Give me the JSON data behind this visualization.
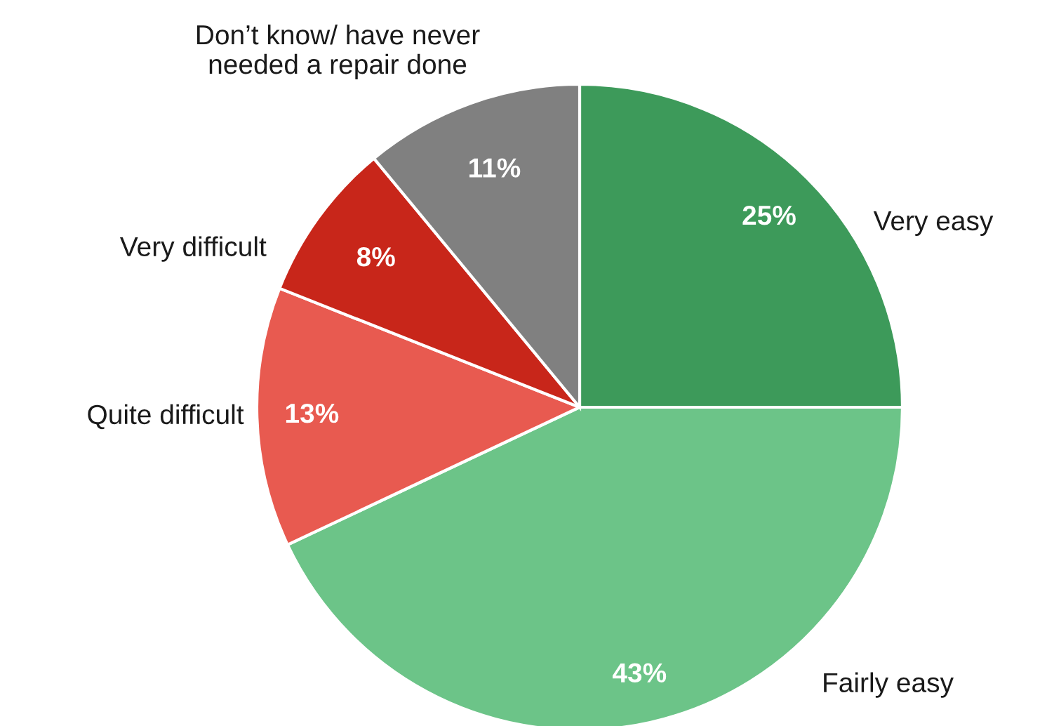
{
  "chart_data": {
    "type": "pie",
    "categories": [
      "Very easy",
      "Fairly easy",
      "Quite difficult",
      "Very difficult",
      "Don’t know/ have never\nneeded a repair done"
    ],
    "values": [
      25,
      43,
      13,
      8,
      11
    ],
    "colors": [
      "#3d9a5a",
      "#6cc488",
      "#e85a50",
      "#c8261a",
      "#808080"
    ],
    "value_labels": [
      "25%",
      "43%",
      "13%",
      "8%",
      "11%"
    ],
    "legend": false
  }
}
